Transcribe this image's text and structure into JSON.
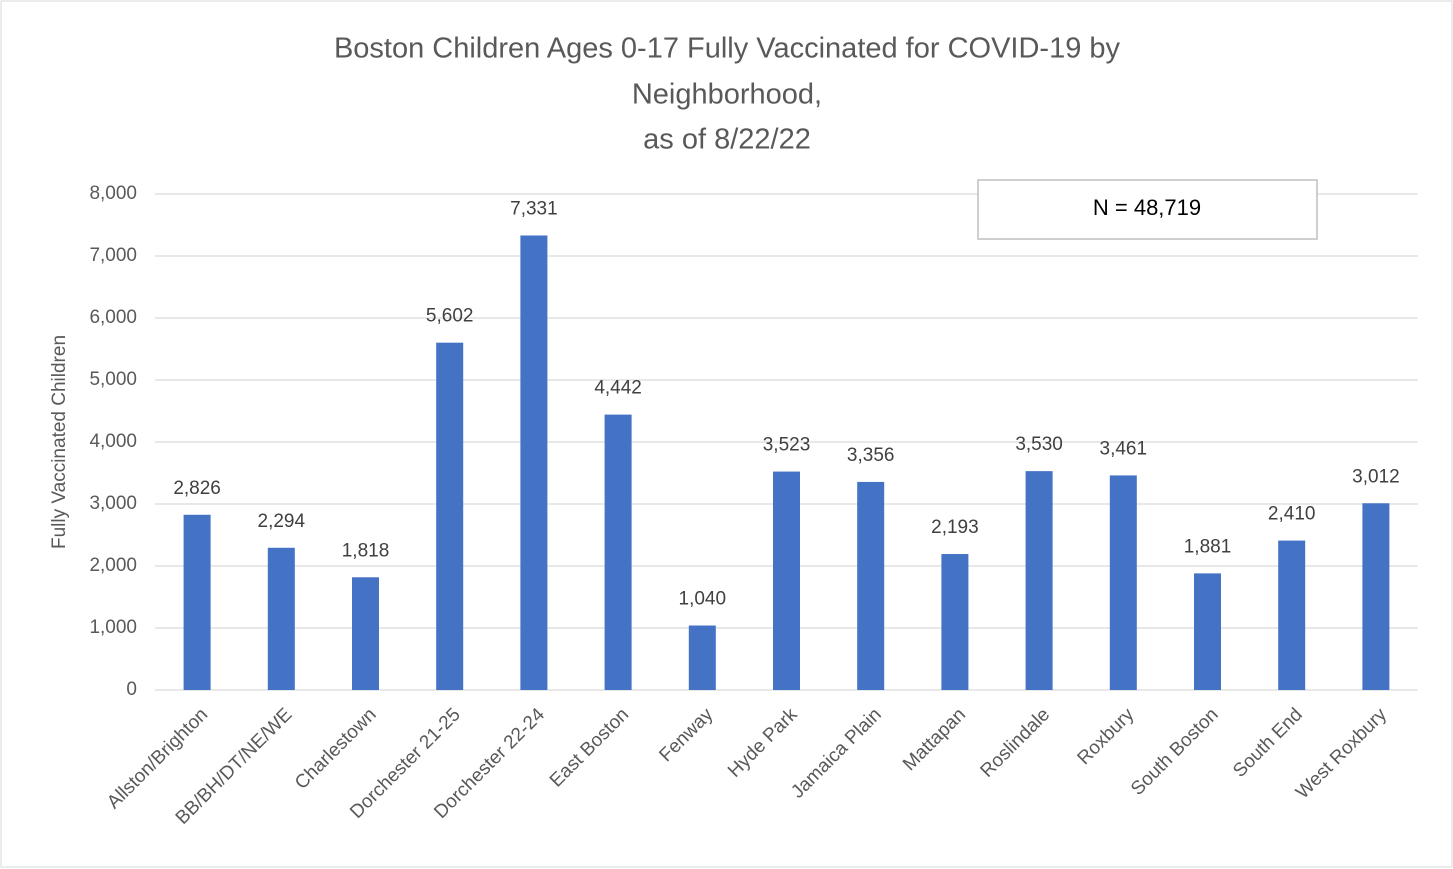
{
  "chart_data": {
    "type": "bar",
    "title": [
      "Boston Children Ages 0-17 Fully Vaccinated for COVID-19 by",
      "Neighborhood,",
      "as of 8/22/22"
    ],
    "y_label": "Fully Vaccinated Children",
    "annotation": "N = 48,719",
    "categories": [
      "Allston/Brighton",
      "BB/BH/DT/NE/WE",
      "Charlestown",
      "Dorchester 21-25",
      "Dorchester 22-24",
      "East Boston",
      "Fenway",
      "Hyde Park",
      "Jamaica Plain",
      "Mattapan",
      "Roslindale",
      "Roxbury",
      "South Boston",
      "South End",
      "West Roxbury"
    ],
    "values": [
      2826,
      2294,
      1818,
      5602,
      7331,
      4442,
      1040,
      3523,
      3356,
      2193,
      3530,
      3461,
      1881,
      2410,
      3012
    ],
    "value_labels": [
      "2,826",
      "2,294",
      "1,818",
      "5,602",
      "7,331",
      "4,442",
      "1,040",
      "3,523",
      "3,356",
      "2,193",
      "3,530",
      "3,461",
      "1,881",
      "2,410",
      "3,012"
    ],
    "color": "#4472c4",
    "ylim": [
      0,
      8000
    ],
    "yticks": [
      0,
      {
        "value": 1000,
        "label": "1,000"
      },
      {
        "value": 2000,
        "label": "2,000"
      },
      {
        "value": 3000,
        "label": "3,000"
      },
      {
        "value": 4000,
        "label": "4,000"
      },
      {
        "value": 5000,
        "label": "5,000"
      },
      {
        "value": 6000,
        "label": "6,000"
      },
      {
        "value": 7000,
        "label": "7,000"
      },
      {
        "value": 8000,
        "label": "8,000"
      }
    ],
    "grid": true
  }
}
